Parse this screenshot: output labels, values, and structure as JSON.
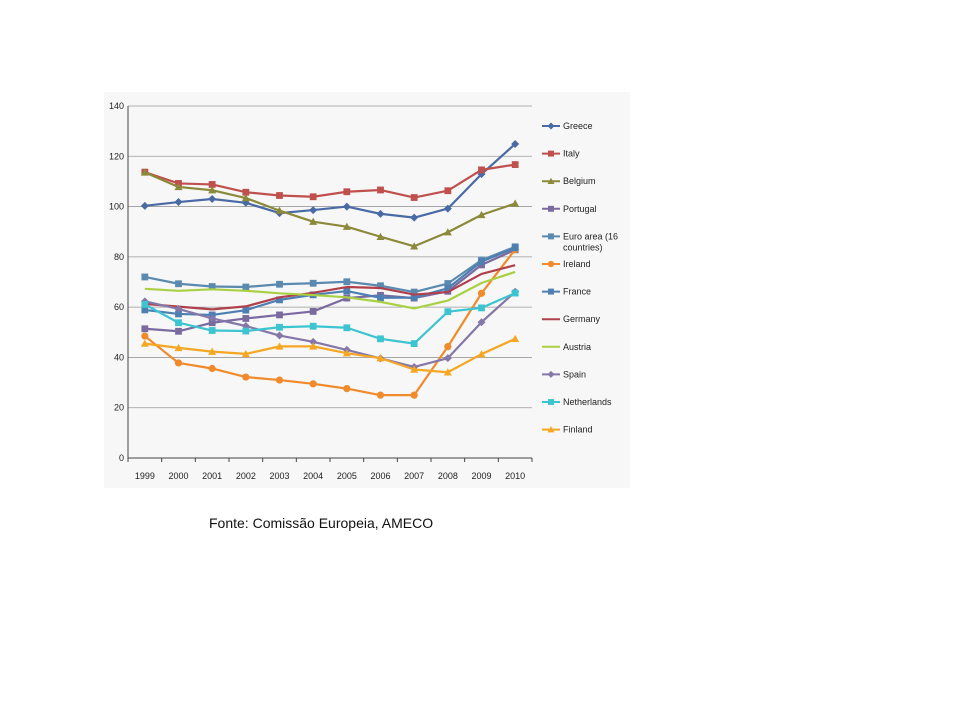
{
  "source_note": "Fonte: Comissão Europeia, AMECO",
  "chart_data": {
    "type": "line",
    "title": "",
    "xlabel": "",
    "ylabel": "",
    "ylim": [
      0,
      140
    ],
    "yticks": [
      0,
      20,
      40,
      60,
      80,
      100,
      120,
      140
    ],
    "grid": "horizontal",
    "legend": "right",
    "categories": [
      "1999",
      "2000",
      "2001",
      "2002",
      "2003",
      "2004",
      "2005",
      "2006",
      "2007",
      "2008",
      "2009",
      "2010"
    ],
    "series": [
      {
        "name": "Greece",
        "color": "#4a6aa5",
        "marker": "diamond",
        "values": [
          100.3,
          101.8,
          103.0,
          101.5,
          97.4,
          98.6,
          100.0,
          97.1,
          95.6,
          99.2,
          112.9,
          124.9
        ]
      },
      {
        "name": "Italy",
        "color": "#c0504d",
        "marker": "square",
        "values": [
          113.7,
          109.2,
          108.8,
          105.7,
          104.4,
          103.9,
          105.9,
          106.6,
          103.6,
          106.3,
          114.6,
          116.7
        ]
      },
      {
        "name": "Belgium",
        "color": "#8b8a3b",
        "marker": "triangle",
        "values": [
          113.6,
          107.8,
          106.5,
          103.4,
          98.4,
          94.0,
          92.0,
          88.0,
          84.2,
          89.8,
          96.7,
          101.2
        ]
      },
      {
        "name": "Portugal",
        "color": "#7b6aa0",
        "marker": "square",
        "values": [
          51.4,
          50.4,
          53.8,
          55.5,
          56.9,
          58.3,
          63.6,
          64.7,
          63.6,
          66.3,
          76.8,
          82.8
        ]
      },
      {
        "name": "Euro area (16 countries)",
        "color": "#5b8ab0",
        "marker": "square",
        "values": [
          72.0,
          69.3,
          68.2,
          68.0,
          69.1,
          69.5,
          70.1,
          68.5,
          66.0,
          69.4,
          78.7,
          84.0
        ]
      },
      {
        "name": "Ireland",
        "color": "#f08a2a",
        "marker": "circle",
        "values": [
          48.5,
          37.8,
          35.6,
          32.2,
          31.0,
          29.5,
          27.6,
          25.0,
          25.0,
          44.3,
          65.5,
          82.9
        ]
      },
      {
        "name": "France",
        "color": "#4e7fb3",
        "marker": "square",
        "values": [
          58.9,
          57.3,
          56.9,
          58.8,
          62.9,
          64.9,
          66.4,
          63.7,
          63.8,
          67.5,
          78.1,
          83.6
        ]
      },
      {
        "name": "Germany",
        "color": "#b0404b",
        "marker": "none",
        "values": [
          61.3,
          60.2,
          59.1,
          60.3,
          63.9,
          65.7,
          68.0,
          67.6,
          65.0,
          66.0,
          73.2,
          76.7
        ]
      },
      {
        "name": "Austria",
        "color": "#a9d042",
        "marker": "none",
        "values": [
          67.3,
          66.5,
          67.1,
          66.5,
          65.5,
          64.8,
          63.9,
          62.1,
          59.5,
          62.6,
          69.6,
          74.0
        ]
      },
      {
        "name": "Spain",
        "color": "#8577a8",
        "marker": "diamond",
        "values": [
          62.3,
          59.3,
          55.5,
          52.5,
          48.7,
          46.2,
          43.0,
          39.6,
          36.2,
          39.7,
          54.0,
          66.1
        ]
      },
      {
        "name": "Netherlands",
        "color": "#3cc4d0",
        "marker": "square",
        "values": [
          61.1,
          53.8,
          50.7,
          50.5,
          52.0,
          52.4,
          51.8,
          47.4,
          45.5,
          58.2,
          59.7,
          65.6
        ]
      },
      {
        "name": "Finland",
        "color": "#f5a623",
        "marker": "triangle",
        "values": [
          45.5,
          43.8,
          42.3,
          41.4,
          44.4,
          44.4,
          41.7,
          39.7,
          35.2,
          34.1,
          41.3,
          47.4
        ]
      }
    ]
  }
}
